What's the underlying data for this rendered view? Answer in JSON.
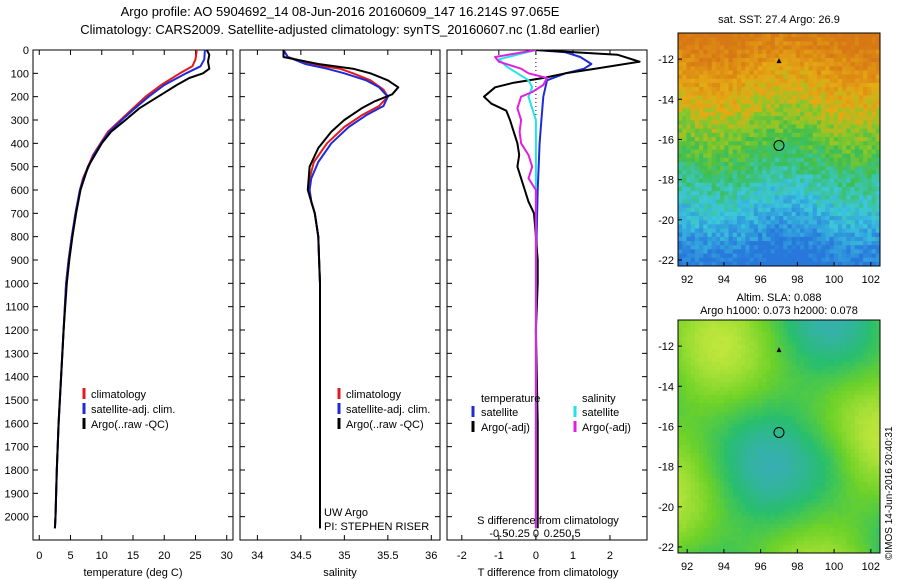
{
  "header": {
    "line1": "Argo profile: AO 5904692_14 08-Jun-2016 20160609_147 16.214S 97.065E",
    "line2": "Climatology: CARS2009. Satellite-adjusted climatology: synTS_20160607.nc (1.8d earlier)"
  },
  "colors": {
    "climatology": "#e41a1c",
    "satellite": "#1f2bd6",
    "argo": "#000000",
    "sal_satellite": "#22e3e3",
    "sal_argo": "#e020e0"
  },
  "chart_data": [
    {
      "type": "line",
      "id": "temperature",
      "xlabel": "temperature (deg C)",
      "ylabel": "",
      "xlim": [
        -1,
        31
      ],
      "ylim": [
        2100,
        0
      ],
      "xticks": [
        "0",
        "5",
        "10",
        "15",
        "20",
        "25",
        "30"
      ],
      "yticks": [
        "0",
        "100",
        "200",
        "300",
        "400",
        "500",
        "600",
        "700",
        "800",
        "900",
        "1000",
        "1100",
        "1200",
        "1300",
        "1400",
        "1500",
        "1600",
        "1700",
        "1800",
        "1900",
        "2000"
      ],
      "legend": [
        "climatology",
        "satellite-adj. clim.",
        "Argo(..raw -QC)"
      ],
      "series": [
        {
          "name": "climatology",
          "points": [
            [
              25.2,
              0
            ],
            [
              25.0,
              40
            ],
            [
              24.5,
              70
            ],
            [
              22.5,
              100
            ],
            [
              19.5,
              150
            ],
            [
              17.0,
              200
            ],
            [
              15.0,
              250
            ],
            [
              13.0,
              300
            ],
            [
              11.0,
              350
            ],
            [
              9.8,
              400
            ],
            [
              8.6,
              450
            ],
            [
              7.8,
              500
            ],
            [
              7.0,
              550
            ],
            [
              6.5,
              600
            ],
            [
              5.8,
              700
            ],
            [
              5.2,
              800
            ],
            [
              4.7,
              900
            ],
            [
              4.3,
              1000
            ],
            [
              3.9,
              1200
            ],
            [
              3.5,
              1400
            ],
            [
              3.1,
              1600
            ],
            [
              2.8,
              1800
            ],
            [
              2.6,
              2000
            ],
            [
              2.5,
              2050
            ]
          ]
        },
        {
          "name": "satellite-adj. clim.",
          "points": [
            [
              26.5,
              0
            ],
            [
              26.4,
              40
            ],
            [
              25.8,
              70
            ],
            [
              23.5,
              100
            ],
            [
              20.0,
              150
            ],
            [
              17.5,
              200
            ],
            [
              15.3,
              250
            ],
            [
              13.2,
              300
            ],
            [
              11.2,
              350
            ],
            [
              9.9,
              400
            ],
            [
              8.7,
              450
            ],
            [
              7.9,
              500
            ],
            [
              7.1,
              550
            ],
            [
              6.5,
              600
            ],
            [
              5.8,
              700
            ],
            [
              5.2,
              800
            ],
            [
              4.7,
              900
            ],
            [
              4.3,
              1000
            ],
            [
              3.9,
              1200
            ],
            [
              3.5,
              1400
            ],
            [
              3.1,
              1600
            ],
            [
              2.8,
              1800
            ],
            [
              2.6,
              2000
            ],
            [
              2.5,
              2050
            ]
          ]
        },
        {
          "name": "Argo(..raw -QC)",
          "points": [
            [
              26.8,
              0
            ],
            [
              27.2,
              20
            ],
            [
              27.0,
              50
            ],
            [
              27.2,
              80
            ],
            [
              26.2,
              100
            ],
            [
              24.0,
              120
            ],
            [
              22.0,
              150
            ],
            [
              19.0,
              200
            ],
            [
              16.0,
              250
            ],
            [
              13.8,
              300
            ],
            [
              11.5,
              350
            ],
            [
              10.0,
              400
            ],
            [
              8.9,
              450
            ],
            [
              7.8,
              500
            ],
            [
              7.2,
              550
            ],
            [
              6.6,
              600
            ],
            [
              5.9,
              700
            ],
            [
              5.3,
              800
            ],
            [
              4.8,
              900
            ],
            [
              4.4,
              1000
            ],
            [
              3.9,
              1200
            ],
            [
              3.5,
              1400
            ],
            [
              3.1,
              1600
            ],
            [
              2.8,
              1800
            ],
            [
              2.6,
              2000
            ],
            [
              2.5,
              2050
            ]
          ]
        }
      ]
    },
    {
      "type": "line",
      "id": "salinity",
      "xlabel": "salinity",
      "xlim": [
        33.8,
        36.1
      ],
      "ylim": [
        2100,
        0
      ],
      "xticks": [
        "34",
        "34.5",
        "35",
        "35.5",
        "36"
      ],
      "legend": [
        "climatology",
        "satellite-adj. clim.",
        "Argo(..raw -QC)"
      ],
      "annotation": [
        "UW Argo",
        "PI: STEPHEN RISER"
      ],
      "series": [
        {
          "name": "climatology",
          "points": [
            [
              34.3,
              0
            ],
            [
              34.35,
              30
            ],
            [
              34.6,
              60
            ],
            [
              34.95,
              80
            ],
            [
              35.1,
              100
            ],
            [
              35.3,
              130
            ],
            [
              35.45,
              170
            ],
            [
              35.5,
              200
            ],
            [
              35.4,
              240
            ],
            [
              35.2,
              280
            ],
            [
              35.0,
              330
            ],
            [
              34.8,
              400
            ],
            [
              34.65,
              480
            ],
            [
              34.6,
              550
            ],
            [
              34.6,
              600
            ],
            [
              34.62,
              650
            ],
            [
              34.66,
              700
            ],
            [
              34.7,
              800
            ],
            [
              34.71,
              900
            ],
            [
              34.72,
              1000
            ],
            [
              34.72,
              1400
            ],
            [
              34.72,
              2050
            ]
          ]
        },
        {
          "name": "satellite-adj. clim.",
          "points": [
            [
              34.3,
              0
            ],
            [
              34.35,
              30
            ],
            [
              34.55,
              60
            ],
            [
              34.8,
              80
            ],
            [
              35.0,
              100
            ],
            [
              35.25,
              130
            ],
            [
              35.4,
              160
            ],
            [
              35.5,
              200
            ],
            [
              35.45,
              240
            ],
            [
              35.25,
              280
            ],
            [
              35.05,
              330
            ],
            [
              34.85,
              400
            ],
            [
              34.7,
              480
            ],
            [
              34.62,
              550
            ],
            [
              34.6,
              600
            ],
            [
              34.62,
              650
            ],
            [
              34.66,
              700
            ],
            [
              34.7,
              800
            ],
            [
              34.71,
              900
            ],
            [
              34.72,
              1000
            ],
            [
              34.72,
              1400
            ],
            [
              34.72,
              2050
            ]
          ]
        },
        {
          "name": "Argo(..raw -QC)",
          "points": [
            [
              34.3,
              0
            ],
            [
              34.3,
              30
            ],
            [
              34.7,
              60
            ],
            [
              35.1,
              80
            ],
            [
              35.3,
              100
            ],
            [
              35.5,
              130
            ],
            [
              35.62,
              160
            ],
            [
              35.55,
              190
            ],
            [
              35.35,
              220
            ],
            [
              35.2,
              250
            ],
            [
              35.0,
              300
            ],
            [
              34.85,
              350
            ],
            [
              34.7,
              420
            ],
            [
              34.6,
              500
            ],
            [
              34.58,
              600
            ],
            [
              34.62,
              650
            ],
            [
              34.66,
              700
            ],
            [
              34.7,
              800
            ],
            [
              34.71,
              900
            ],
            [
              34.72,
              1000
            ],
            [
              34.72,
              1400
            ],
            [
              34.72,
              2050
            ]
          ]
        }
      ]
    },
    {
      "type": "line",
      "id": "difference",
      "xlabel": "T difference from climatology",
      "x2label": "S difference from climatology",
      "xlim": [
        -2.4,
        3.0
      ],
      "ylim": [
        2100,
        0
      ],
      "xticks": [
        "-2",
        "-1",
        "0",
        "1",
        "2"
      ],
      "x2ticks": [
        "-0.5",
        "-0.25",
        "0",
        "0.25",
        "0.5"
      ],
      "legend_temperature": [
        "temperature",
        "satellite",
        "Argo(-adj)"
      ],
      "legend_salinity": [
        "salinity",
        "satellite",
        "Argo(-adj)"
      ],
      "series": [
        {
          "name": "temperature satellite",
          "points": [
            [
              0.0,
              0
            ],
            [
              0.8,
              10
            ],
            [
              1.2,
              30
            ],
            [
              1.5,
              60
            ],
            [
              1.3,
              80
            ],
            [
              0.8,
              100
            ],
            [
              0.3,
              130
            ],
            [
              0.2,
              200
            ],
            [
              0.15,
              300
            ],
            [
              0.1,
              400
            ],
            [
              0.05,
              600
            ],
            [
              0.02,
              800
            ],
            [
              0.0,
              1200
            ],
            [
              0.0,
              2050
            ]
          ]
        },
        {
          "name": "temperature Argo(-adj)",
          "points": [
            [
              0.0,
              0
            ],
            [
              2.2,
              20
            ],
            [
              2.8,
              50
            ],
            [
              1.6,
              80
            ],
            [
              0.8,
              100
            ],
            [
              0.2,
              120
            ],
            [
              -0.6,
              140
            ],
            [
              -1.1,
              160
            ],
            [
              -1.4,
              200
            ],
            [
              -1.2,
              230
            ],
            [
              -0.8,
              260
            ],
            [
              -0.7,
              300
            ],
            [
              -0.6,
              350
            ],
            [
              -0.5,
              400
            ],
            [
              -0.45,
              450
            ],
            [
              -0.5,
              500
            ],
            [
              -0.4,
              550
            ],
            [
              -0.3,
              600
            ],
            [
              -0.2,
              650
            ],
            [
              -0.05,
              700
            ],
            [
              0.0,
              800
            ],
            [
              0.05,
              900
            ],
            [
              0.05,
              1000
            ],
            [
              0.0,
              1200
            ],
            [
              0.05,
              1600
            ],
            [
              0.05,
              2050
            ]
          ]
        },
        {
          "name": "salinity satellite",
          "points": [
            [
              0.0,
              0
            ],
            [
              -0.5,
              40
            ],
            [
              -0.4,
              70
            ],
            [
              -0.25,
              100
            ],
            [
              -0.1,
              130
            ],
            [
              -0.05,
              160
            ],
            [
              -0.1,
              200
            ],
            [
              -0.05,
              250
            ],
            [
              0.0,
              300
            ],
            [
              0.0,
              600
            ],
            [
              0.0,
              2050
            ]
          ]
        },
        {
          "name": "salinity Argo(-adj)",
          "points": [
            [
              0.0,
              0
            ],
            [
              -0.55,
              30
            ],
            [
              -0.5,
              50
            ],
            [
              -0.2,
              80
            ],
            [
              -0.1,
              100
            ],
            [
              0.15,
              120
            ],
            [
              0.1,
              150
            ],
            [
              -0.05,
              180
            ],
            [
              -0.2,
              200
            ],
            [
              -0.25,
              250
            ],
            [
              -0.2,
              300
            ],
            [
              -0.22,
              350
            ],
            [
              -0.2,
              400
            ],
            [
              -0.1,
              450
            ],
            [
              -0.05,
              500
            ],
            [
              -0.1,
              550
            ],
            [
              0.0,
              600
            ],
            [
              0.0,
              2050
            ]
          ]
        }
      ]
    },
    {
      "type": "heatmap",
      "id": "sst_map",
      "title": "sat. SST: 27.4 Argo: 26.9",
      "xlim": [
        91.5,
        102.5
      ],
      "ylim": [
        -22.3,
        -10.7
      ],
      "xticks": [
        "92",
        "94",
        "96",
        "98",
        "100",
        "102"
      ],
      "yticks": [
        "-12",
        "-14",
        "-16",
        "-18",
        "-20",
        "-22"
      ],
      "marker_circle": [
        97.0,
        -16.3
      ],
      "marker_triangle": [
        97.0,
        -12.1
      ]
    },
    {
      "type": "heatmap",
      "id": "sla_map",
      "title": "Altim. SLA: 0.088",
      "subtitle": "Argo h1000: 0.073 h2000: 0.078",
      "xlim": [
        91.5,
        102.5
      ],
      "ylim": [
        -22.3,
        -10.7
      ],
      "xticks": [
        "92",
        "94",
        "96",
        "98",
        "100",
        "102"
      ],
      "yticks": [
        "-12",
        "-14",
        "-16",
        "-18",
        "-20",
        "-22"
      ],
      "marker_circle": [
        97.0,
        -16.3
      ],
      "marker_triangle": [
        97.0,
        -12.2
      ]
    }
  ],
  "footer": {
    "stamp": "©IMOS 14-Jun-2016 20:40:31"
  }
}
